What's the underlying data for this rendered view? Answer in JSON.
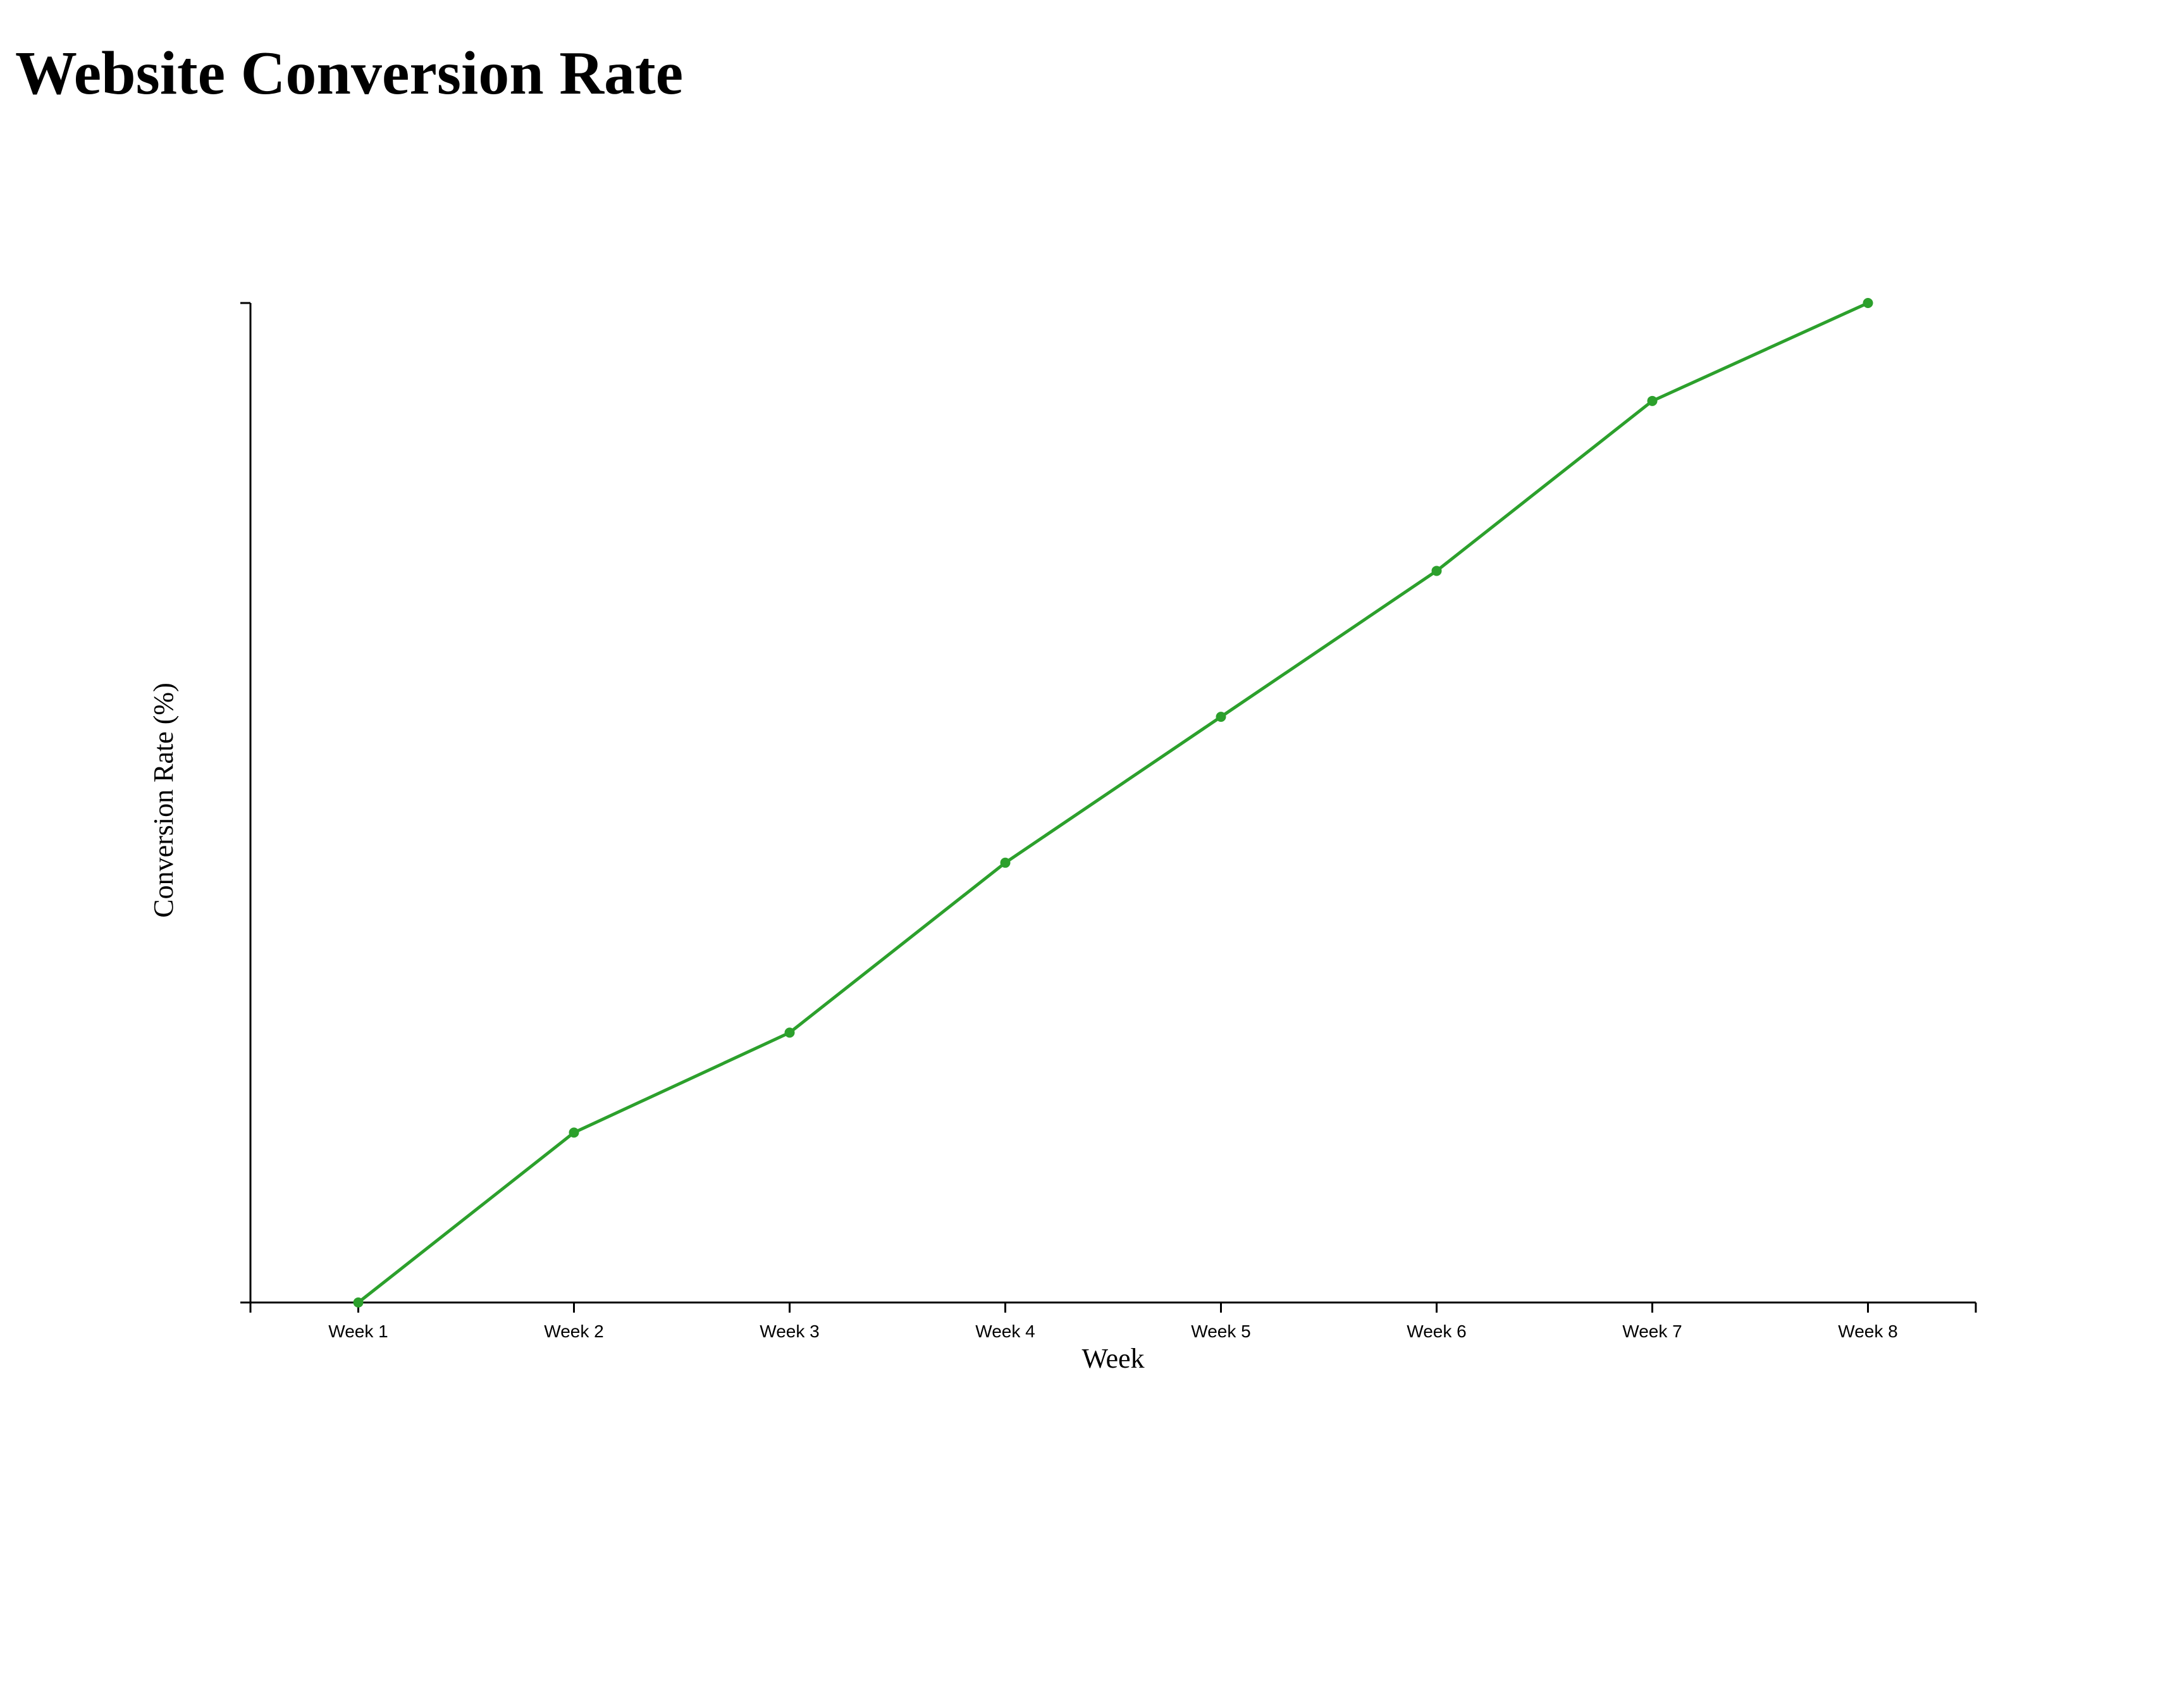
{
  "page": {
    "title": "Website Conversion Rate"
  },
  "chart_data": {
    "type": "line",
    "title": "Website Conversion Rate",
    "xlabel": "Week",
    "ylabel": "Conversion Rate (%)",
    "categories": [
      "Week 1",
      "Week 2",
      "Week 3",
      "Week 4",
      "Week 5",
      "Week 6",
      "Week 7",
      "Week 8"
    ],
    "series": [
      {
        "values": [
          0.0,
          1.7,
          2.7,
          4.4,
          5.86,
          7.32,
          9.02,
          10.0
        ],
        "color": "#2ca02c"
      }
    ],
    "ylim": [
      0,
      10
    ],
    "y_tick_values": [
      0,
      10
    ],
    "y_tick_labels_shown": false,
    "grid": false,
    "legend": "none",
    "axis_color": "#000000"
  }
}
